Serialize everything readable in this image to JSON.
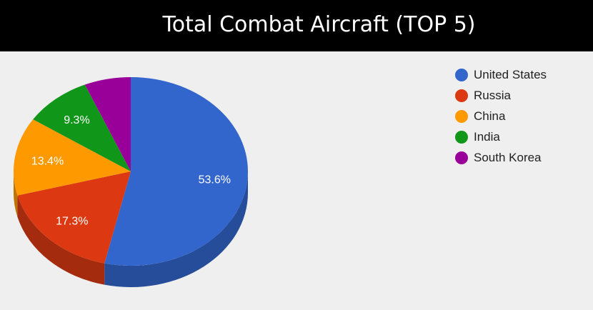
{
  "chart_data": {
    "type": "pie",
    "title": "Total Combat Aircraft (TOP 5)",
    "is3D": true,
    "legend_position": "right",
    "slices": [
      {
        "label": "United States",
        "value": 53.6,
        "display": "53.6%",
        "color": "#3366cc",
        "side_color": "#264d99"
      },
      {
        "label": "Russia",
        "value": 17.3,
        "display": "17.3%",
        "color": "#dc3912",
        "side_color": "#a52b0e"
      },
      {
        "label": "China",
        "value": 13.4,
        "display": "13.4%",
        "color": "#ff9900",
        "side_color": "#bf7300"
      },
      {
        "label": "India",
        "value": 9.3,
        "display": "9.3%",
        "color": "#109618",
        "side_color": "#0c7112"
      },
      {
        "label": "South Korea",
        "value": 6.4,
        "display": "",
        "color": "#990099",
        "side_color": "#730073"
      }
    ]
  }
}
